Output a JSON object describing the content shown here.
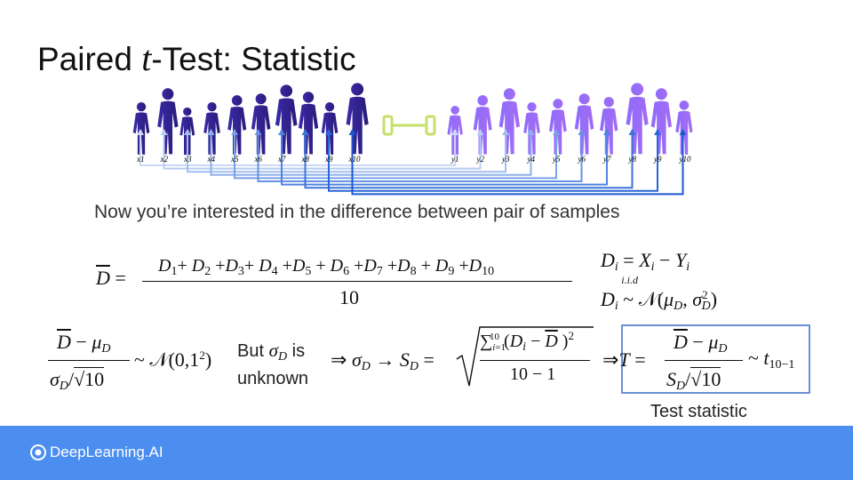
{
  "slide": {
    "title_prefix": "Paired ",
    "title_var": "t",
    "title_suffix": "-Test: Statistic",
    "subtitle": "Now you’re interested in the difference between pair of samples"
  },
  "figure": {
    "x_labels": [
      "x1",
      "x2",
      "x3",
      "x4",
      "x5",
      "x6",
      "x7",
      "x8",
      "x9",
      "x10"
    ],
    "y_labels": [
      "y1",
      "y2",
      "y3",
      "y4",
      "y5",
      "y6",
      "y7",
      "y8",
      "y9",
      "y10"
    ],
    "colors": {
      "left_group": "#2f1f8f",
      "right_group": "#9b6bff",
      "connector": "#c6e06a",
      "arrows": "#2d6fd6"
    }
  },
  "math": {
    "mean_lhs": "D = ",
    "mean_numerator": "D1 + D2 + D3+ D4 + D5 + D6 + D7 + D8 + D9 + D10",
    "mean_denominator": "10",
    "diff_def": "Di = Xi − Yi",
    "iid_label": "i.i.d",
    "dist_def": "Di ~ N(μD, σD²)",
    "standardized_dist": "~ N(0,1²)",
    "but_text_1": "But σD is",
    "but_text_2": "unknown",
    "sd_estimate_denominator": "10 − 1",
    "t_dist": "~ t10−1",
    "test_statistic_label": "Test statistic"
  },
  "footer": {
    "brand": "DeepLearning.AI"
  }
}
